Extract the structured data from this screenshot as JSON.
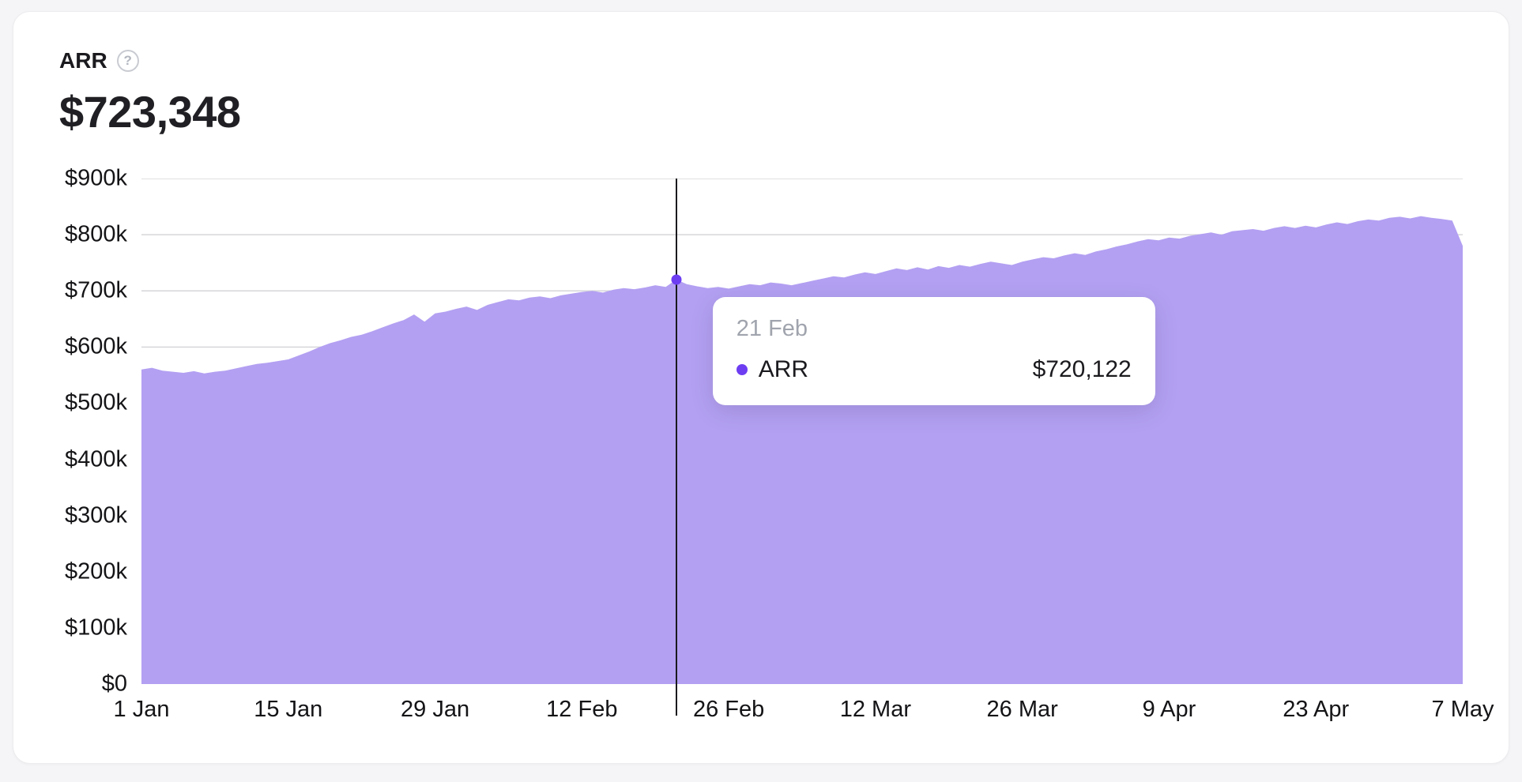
{
  "card": {
    "title": "ARR",
    "help_icon": "?",
    "value": "$723,348"
  },
  "tooltip": {
    "date": "21 Feb",
    "series": "ARR",
    "value": "$720,122"
  },
  "colors": {
    "area": "#b3a0f2",
    "dot": "#6d3df2",
    "crosshair": "#1a1a1e",
    "grid": "#d6d6da",
    "axis_text": "#141417",
    "muted_text": "#a0a4ad"
  },
  "chart_data": {
    "type": "area",
    "title": "ARR",
    "xlabel": "",
    "ylabel": "",
    "legend": "none",
    "grid": true,
    "x_tick_labels": [
      "1 Jan",
      "15 Jan",
      "29 Jan",
      "12 Feb",
      "26 Feb",
      "12 Mar",
      "26 Mar",
      "9 Apr",
      "23 Apr",
      "7 May"
    ],
    "x_tick_days": [
      0,
      14,
      28,
      42,
      56,
      70,
      84,
      98,
      112,
      126
    ],
    "x_days_total": 126,
    "y_ticks": [
      0,
      100000,
      200000,
      300000,
      400000,
      500000,
      600000,
      700000,
      800000,
      900000
    ],
    "y_tick_labels": [
      "$0",
      "$100k",
      "$200k",
      "$300k",
      "$400k",
      "$500k",
      "$600k",
      "$700k",
      "$800k",
      "$900k"
    ],
    "ylim": [
      0,
      900000
    ],
    "series": [
      {
        "name": "ARR",
        "color": "#b3a0f2",
        "values": [
          560000,
          563000,
          558000,
          556000,
          554000,
          557000,
          553000,
          556000,
          558000,
          562000,
          566000,
          570000,
          572000,
          575000,
          578000,
          585000,
          592000,
          600000,
          607000,
          612000,
          618000,
          622000,
          628000,
          635000,
          642000,
          648000,
          658000,
          645000,
          660000,
          663000,
          668000,
          672000,
          666000,
          675000,
          680000,
          685000,
          683000,
          688000,
          690000,
          687000,
          692000,
          695000,
          698000,
          700000,
          697000,
          702000,
          705000,
          703000,
          706000,
          710000,
          707000,
          720122,
          712000,
          708000,
          705000,
          707000,
          704000,
          708000,
          712000,
          710000,
          715000,
          713000,
          710000,
          714000,
          718000,
          722000,
          726000,
          724000,
          729000,
          733000,
          730000,
          735000,
          740000,
          737000,
          742000,
          738000,
          744000,
          741000,
          746000,
          743000,
          748000,
          752000,
          749000,
          746000,
          752000,
          756000,
          760000,
          758000,
          763000,
          767000,
          764000,
          770000,
          774000,
          779000,
          783000,
          788000,
          792000,
          790000,
          795000,
          793000,
          798000,
          801000,
          804000,
          800000,
          806000,
          808000,
          810000,
          807000,
          812000,
          815000,
          812000,
          816000,
          813000,
          818000,
          822000,
          819000,
          824000,
          827000,
          825000,
          830000,
          832000,
          829000,
          833000,
          830000,
          828000,
          825000,
          780000
        ]
      }
    ],
    "highlight": {
      "index": 51,
      "day_label": "21 Feb",
      "value": 720122,
      "formatted": "$720,122"
    }
  }
}
